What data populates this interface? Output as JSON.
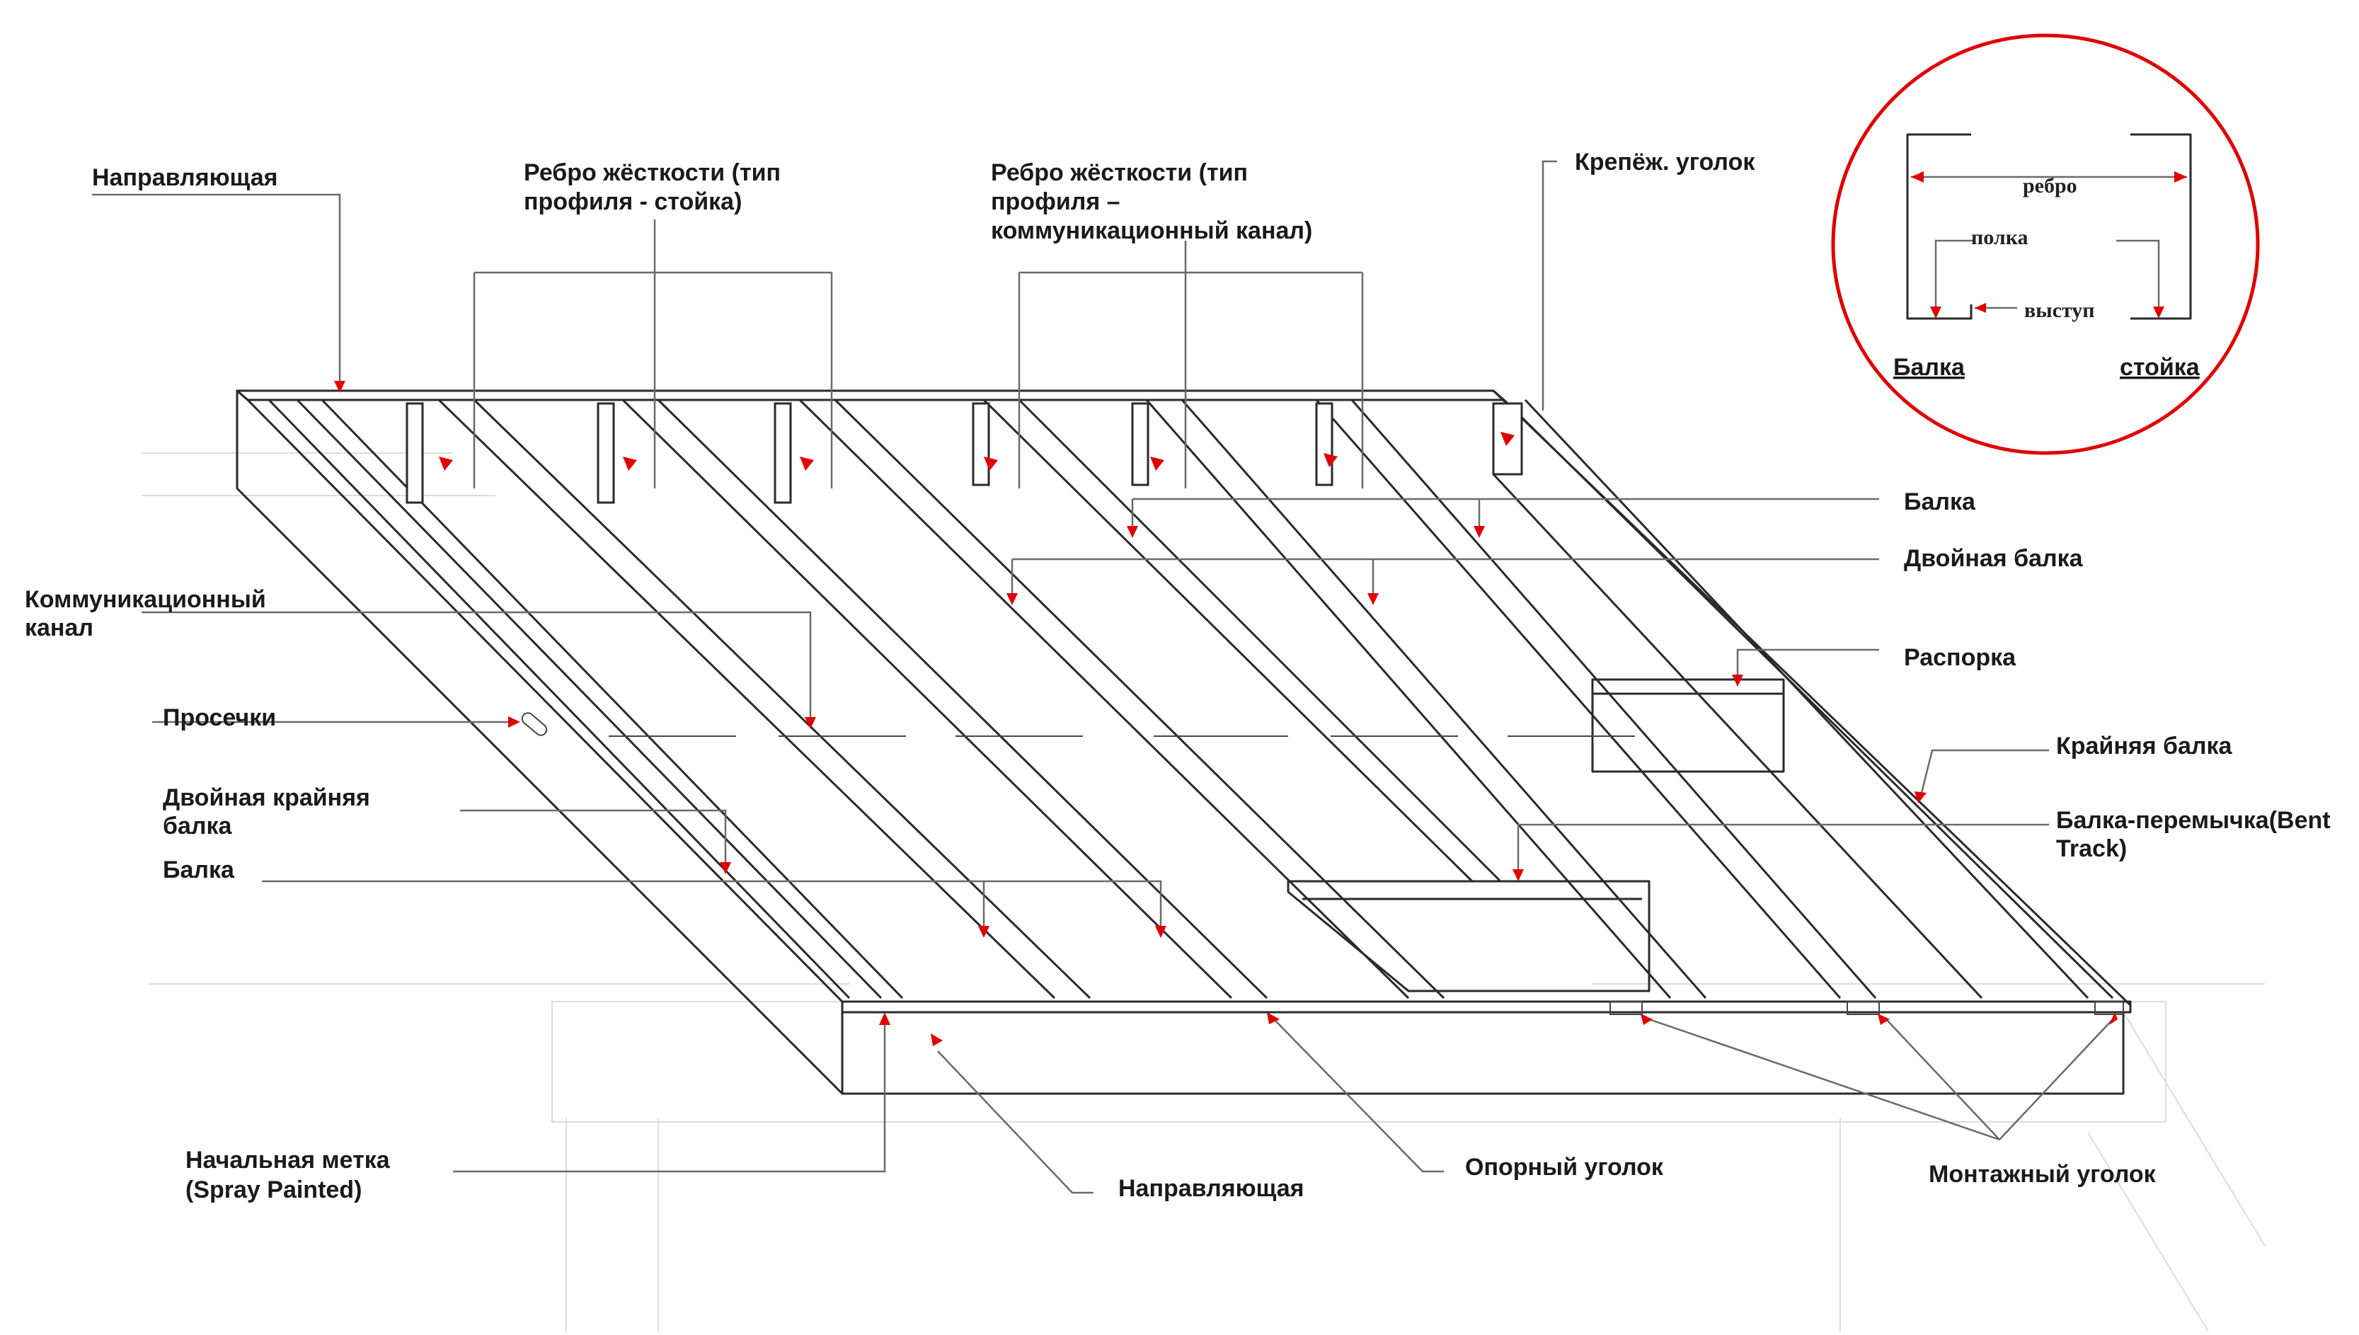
{
  "colors": {
    "arrow": "#e00000",
    "line": "#2a2a2a",
    "leader": "#6a6a6a",
    "inset_circle": "#e00000",
    "background": "#ffffff"
  },
  "labels": {
    "guide_top": "Направляющая",
    "stiffener_stud_1": "Ребро жёсткости (тип",
    "stiffener_stud_2": "профиля - стойка)",
    "stiffener_channel_1": "Ребро жёсткости (тип",
    "stiffener_channel_2": "профиля –",
    "stiffener_channel_3": "коммуникационный канал)",
    "clip_angle": "Крепёж. уголок",
    "joist_right": "Балка",
    "double_joist": "Двойная балка",
    "blocking": "Распорка",
    "rim_joist": "Крайняя балка",
    "bent_track_1": "Балка-перемычка(Bent",
    "bent_track_2": "Track)",
    "service_channel_1": "Коммуникационный",
    "service_channel_2": "канал",
    "knockouts": "Просечки",
    "double_rim_1": "Двойная крайняя",
    "double_rim_2": "балка",
    "joist_left": "Балка",
    "start_mark_1": "Начальная метка",
    "start_mark_2": "(Spray Painted)",
    "guide_bottom": "Направляющая",
    "bearing_angle": "Опорный уголок",
    "mounting_angle": "Монтажный уголок"
  },
  "inset": {
    "rib": "ребро",
    "flange": "полка",
    "lip": "выступ",
    "joist": "Балка",
    "stud": "стойка"
  }
}
